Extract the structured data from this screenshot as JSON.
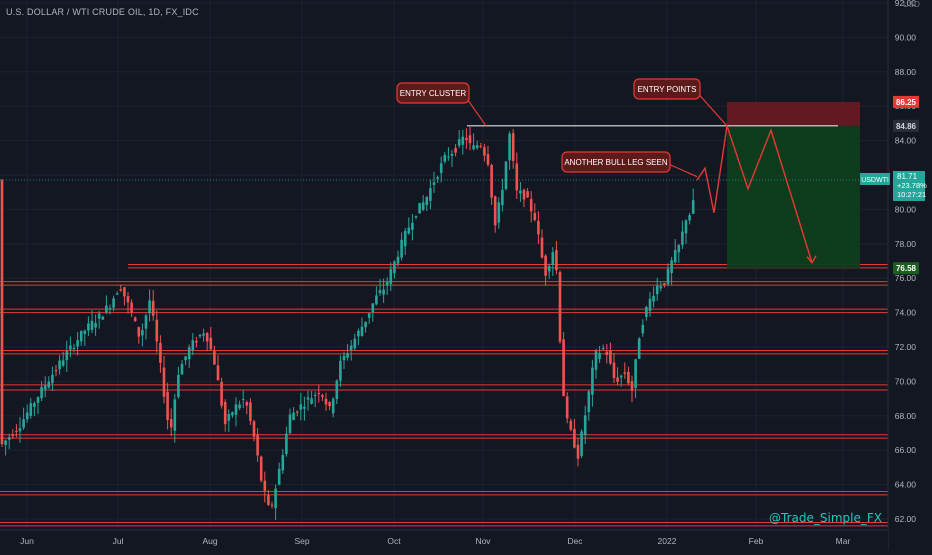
{
  "header": {
    "title": "U.S. DOLLAR / WTI CRUDE OIL, 1D, FX_IDC",
    "currency": "USD",
    "watermark": "@Trade_Simple_FX"
  },
  "colors": {
    "background": "#131722",
    "grid": "#1e222d",
    "up": "#26a69a",
    "down": "#ef5350",
    "level_line": "#e53935",
    "callout_bg": "#5c1a1a",
    "callout_border": "#e53935",
    "stop_zone": "#6b1a22",
    "target_zone": "#0f3d1e",
    "axis_text": "#b2b5be"
  },
  "chart_data": {
    "type": "candlestick",
    "y_axis_ticks": [
      "92.00",
      "90.00",
      "88.00",
      "86.00",
      "84.00",
      "82.00",
      "80.00",
      "78.00",
      "76.00",
      "74.00",
      "72.00",
      "70.00",
      "68.00",
      "66.00",
      "64.00",
      "62.00"
    ],
    "ylim": [
      61.5,
      92.2
    ],
    "x_axis_ticks": [
      "Jun",
      "Jul",
      "Aug",
      "Sep",
      "Oct",
      "Nov",
      "Dec",
      "2022",
      "Feb",
      "Mar"
    ],
    "price_path": [
      [
        0,
        66.2
      ],
      [
        20,
        67.5
      ],
      [
        45,
        69.8
      ],
      [
        65,
        71.5
      ],
      [
        85,
        73.0
      ],
      [
        100,
        73.8
      ],
      [
        110,
        74.5
      ],
      [
        120,
        75.6
      ],
      [
        130,
        74.2
      ],
      [
        140,
        72.5
      ],
      [
        150,
        74.8
      ],
      [
        160,
        71.0
      ],
      [
        170,
        66.8
      ],
      [
        178,
        70.5
      ],
      [
        190,
        72.0
      ],
      [
        205,
        73.0
      ],
      [
        215,
        71.0
      ],
      [
        225,
        67.5
      ],
      [
        235,
        68.5
      ],
      [
        245,
        69.0
      ],
      [
        255,
        66.5
      ],
      [
        262,
        64.0
      ],
      [
        270,
        62.3
      ],
      [
        278,
        64.5
      ],
      [
        290,
        68.0
      ],
      [
        305,
        68.8
      ],
      [
        320,
        69.5
      ],
      [
        330,
        68.3
      ],
      [
        340,
        71.0
      ],
      [
        355,
        72.5
      ],
      [
        365,
        73.5
      ],
      [
        375,
        74.8
      ],
      [
        385,
        75.5
      ],
      [
        395,
        77.0
      ],
      [
        405,
        78.5
      ],
      [
        415,
        79.8
      ],
      [
        425,
        80.5
      ],
      [
        435,
        81.8
      ],
      [
        445,
        83.0
      ],
      [
        455,
        83.5
      ],
      [
        465,
        84.3
      ],
      [
        472,
        83.5
      ],
      [
        480,
        83.9
      ],
      [
        488,
        82.8
      ],
      [
        495,
        79.0
      ],
      [
        503,
        81.5
      ],
      [
        510,
        84.5
      ],
      [
        516,
        81.0
      ],
      [
        525,
        80.8
      ],
      [
        535,
        79.5
      ],
      [
        545,
        76.2
      ],
      [
        555,
        78.0
      ],
      [
        560,
        72.5
      ],
      [
        565,
        68.0
      ],
      [
        572,
        66.8
      ],
      [
        578,
        65.7
      ],
      [
        585,
        68.0
      ],
      [
        595,
        71.5
      ],
      [
        605,
        72.0
      ],
      [
        615,
        70.0
      ],
      [
        625,
        70.5
      ],
      [
        632,
        69.5
      ],
      [
        640,
        73.0
      ],
      [
        648,
        74.5
      ],
      [
        656,
        75.5
      ],
      [
        665,
        75.8
      ],
      [
        672,
        77.0
      ],
      [
        680,
        78.0
      ],
      [
        686,
        79.5
      ],
      [
        692,
        79.9
      ],
      [
        697,
        81.7
      ]
    ],
    "horizontal_levels": [
      76.8,
      76.6,
      75.8,
      75.6,
      74.2,
      74.0,
      71.8,
      71.6,
      69.8,
      69.5,
      66.9,
      66.7,
      63.6,
      63.4,
      61.8,
      61.6
    ],
    "resistance_line": 84.86,
    "trade_zones": {
      "stop_top": 86.25,
      "entry": 84.86,
      "target": 76.58
    },
    "projection_path": [
      [
        697,
        81.7
      ],
      [
        705,
        82.4
      ],
      [
        714,
        79.8
      ],
      [
        727,
        84.86
      ],
      [
        748,
        81.2
      ],
      [
        771,
        84.6
      ],
      [
        812,
        76.9
      ]
    ],
    "price_labels": [
      {
        "value": 86.25,
        "text": "86.25",
        "bg": "#e53935",
        "fg": "#ffffff"
      },
      {
        "value": 84.86,
        "text": "84.86",
        "bg": "#2a2e39",
        "fg": "#d1d4dc"
      },
      {
        "value": 76.58,
        "text": "76.58",
        "bg": "#1b5e20",
        "fg": "#ffffff"
      }
    ],
    "current_price": {
      "symbol": "USDWTI",
      "price": "81.71",
      "change": "+23.78%",
      "countdown": "10:27:21",
      "value": 81.71
    },
    "annotations": [
      {
        "text": "ENTRY CLUSTER"
      },
      {
        "text": "ENTRY POINTS"
      },
      {
        "text": "ANOTHER BULL LEG SEEN"
      }
    ]
  }
}
